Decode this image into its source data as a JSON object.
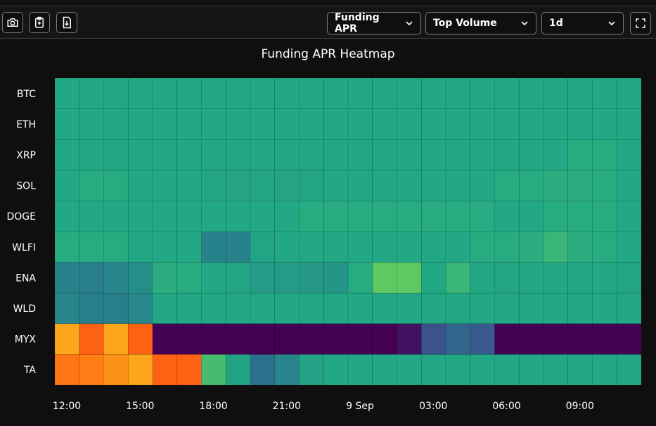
{
  "toolbar": {
    "buttons": [
      {
        "name": "camera-button",
        "icon": "camera-icon"
      },
      {
        "name": "copy-clipboard-button",
        "icon": "clipboard-icon"
      },
      {
        "name": "download-button",
        "icon": "download-icon"
      }
    ],
    "metric_select": "Funding APR",
    "universe_select": "Top Volume",
    "range_select": "1d",
    "fullscreen_icon": "fullscreen-icon"
  },
  "chart_data": {
    "type": "heatmap",
    "title": "Funding APR Heatmap",
    "rows": [
      "BTC",
      "ETH",
      "XRP",
      "SOL",
      "DOGE",
      "WLFI",
      "ENA",
      "WLD",
      "MYX",
      "TA"
    ],
    "x_tick_labels": [
      "12:00",
      "15:00",
      "18:00",
      "21:00",
      "9 Sep",
      "03:00",
      "06:00",
      "09:00"
    ],
    "columns_count": 24,
    "color_scale": "viridis-to-plasma (dark purple = lowest, green = neutral, orange/yellow = highest)",
    "values": [
      [
        0.55,
        0.55,
        0.55,
        0.55,
        0.55,
        0.55,
        0.55,
        0.55,
        0.55,
        0.55,
        0.55,
        0.55,
        0.55,
        0.55,
        0.55,
        0.55,
        0.55,
        0.55,
        0.55,
        0.55,
        0.55,
        0.55,
        0.55,
        0.55
      ],
      [
        0.55,
        0.55,
        0.55,
        0.55,
        0.55,
        0.55,
        0.55,
        0.55,
        0.55,
        0.55,
        0.55,
        0.55,
        0.55,
        0.55,
        0.55,
        0.55,
        0.55,
        0.55,
        0.55,
        0.55,
        0.55,
        0.55,
        0.55,
        0.55
      ],
      [
        0.55,
        0.55,
        0.55,
        0.55,
        0.55,
        0.55,
        0.55,
        0.55,
        0.55,
        0.55,
        0.55,
        0.55,
        0.55,
        0.55,
        0.55,
        0.55,
        0.55,
        0.55,
        0.55,
        0.55,
        0.55,
        0.56,
        0.56,
        0.55
      ],
      [
        0.55,
        0.56,
        0.56,
        0.55,
        0.55,
        0.55,
        0.54,
        0.54,
        0.54,
        0.54,
        0.54,
        0.55,
        0.55,
        0.55,
        0.55,
        0.55,
        0.55,
        0.55,
        0.56,
        0.56,
        0.57,
        0.57,
        0.56,
        0.55
      ],
      [
        0.55,
        0.55,
        0.55,
        0.55,
        0.55,
        0.55,
        0.55,
        0.55,
        0.55,
        0.55,
        0.56,
        0.56,
        0.56,
        0.56,
        0.56,
        0.56,
        0.56,
        0.56,
        0.55,
        0.55,
        0.56,
        0.56,
        0.56,
        0.55
      ],
      [
        0.56,
        0.56,
        0.56,
        0.55,
        0.55,
        0.55,
        0.43,
        0.43,
        0.54,
        0.55,
        0.55,
        0.55,
        0.55,
        0.55,
        0.55,
        0.55,
        0.55,
        0.56,
        0.56,
        0.57,
        0.6,
        0.57,
        0.56,
        0.55
      ],
      [
        0.43,
        0.42,
        0.44,
        0.47,
        0.57,
        0.56,
        0.55,
        0.54,
        0.51,
        0.51,
        0.5,
        0.49,
        0.56,
        0.68,
        0.68,
        0.55,
        0.6,
        0.55,
        0.54,
        0.55,
        0.55,
        0.55,
        0.55,
        0.54
      ],
      [
        0.44,
        0.42,
        0.42,
        0.45,
        0.55,
        0.55,
        0.55,
        0.55,
        0.55,
        0.55,
        0.55,
        0.55,
        0.55,
        0.55,
        0.55,
        0.55,
        0.55,
        0.55,
        0.55,
        0.55,
        0.55,
        0.55,
        0.55,
        0.55
      ],
      [
        0.93,
        0.83,
        0.93,
        0.83,
        0.0,
        0.0,
        0.0,
        0.0,
        0.0,
        0.0,
        0.0,
        0.0,
        0.0,
        0.0,
        0.04,
        0.2,
        0.3,
        0.24,
        0.0,
        0.0,
        0.0,
        0.0,
        0.0,
        0.0
      ],
      [
        0.86,
        0.87,
        0.9,
        0.93,
        0.83,
        0.83,
        0.63,
        0.53,
        0.36,
        0.44,
        0.53,
        0.55,
        0.55,
        0.55,
        0.55,
        0.55,
        0.55,
        0.55,
        0.55,
        0.55,
        0.55,
        0.55,
        0.55,
        0.55
      ]
    ]
  }
}
